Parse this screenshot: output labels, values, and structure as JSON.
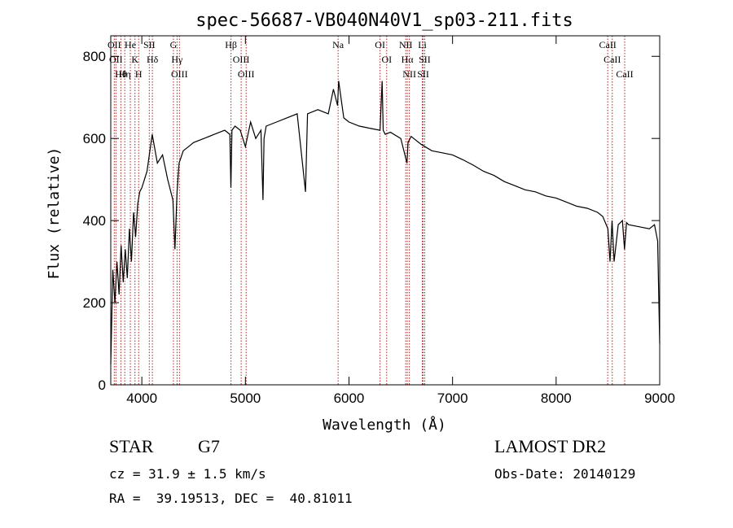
{
  "chart_data": {
    "type": "line",
    "title": "spec-56687-VB040N40V1_sp03-211.fits",
    "xlabel": "Wavelength (Å)",
    "ylabel": "Flux (relative)",
    "xlim": [
      3700,
      9000
    ],
    "ylim": [
      0,
      850
    ],
    "xticks": [
      4000,
      5000,
      6000,
      7000,
      8000,
      9000
    ],
    "yticks": [
      0,
      200,
      400,
      600,
      800
    ],
    "grid": false,
    "series": [
      {
        "name": "",
        "color": "#000000",
        "x": [
          3700,
          3720,
          3740,
          3760,
          3780,
          3800,
          3820,
          3840,
          3860,
          3880,
          3900,
          3920,
          3940,
          3960,
          3980,
          4000,
          4050,
          4100,
          4150,
          4200,
          4250,
          4300,
          4320,
          4340,
          4360,
          4400,
          4450,
          4500,
          4600,
          4700,
          4800,
          4850,
          4860,
          4870,
          4900,
          4950,
          5000,
          5050,
          5100,
          5150,
          5170,
          5180,
          5200,
          5300,
          5400,
          5500,
          5580,
          5600,
          5700,
          5800,
          5850,
          5890,
          5900,
          5950,
          6000,
          6100,
          6200,
          6300,
          6320,
          6330,
          6350,
          6400,
          6500,
          6560,
          6570,
          6600,
          6700,
          6800,
          6900,
          7000,
          7100,
          7200,
          7300,
          7400,
          7500,
          7600,
          7700,
          7800,
          7900,
          8000,
          8100,
          8200,
          8300,
          8400,
          8450,
          8500,
          8520,
          8540,
          8560,
          8600,
          8640,
          8660,
          8680,
          8700,
          8800,
          8900,
          8950,
          8980,
          9000
        ],
        "values": [
          50,
          280,
          200,
          300,
          220,
          340,
          250,
          330,
          260,
          380,
          300,
          420,
          360,
          440,
          470,
          480,
          520,
          610,
          540,
          560,
          500,
          450,
          330,
          470,
          540,
          570,
          580,
          590,
          600,
          610,
          620,
          610,
          480,
          620,
          630,
          620,
          580,
          640,
          600,
          620,
          450,
          600,
          630,
          640,
          650,
          660,
          470,
          660,
          670,
          660,
          720,
          680,
          740,
          650,
          640,
          630,
          625,
          620,
          740,
          620,
          610,
          615,
          600,
          540,
          590,
          605,
          585,
          570,
          565,
          560,
          548,
          535,
          520,
          510,
          495,
          485,
          475,
          470,
          460,
          455,
          445,
          435,
          430,
          420,
          410,
          380,
          300,
          400,
          300,
          390,
          400,
          330,
          395,
          390,
          385,
          380,
          390,
          350,
          100
        ]
      }
    ],
    "line_annotations": [
      {
        "x": 3734,
        "label": "OII"
      },
      {
        "x": 3750,
        "label": "OII"
      },
      {
        "x": 3798,
        "label": "Hθ"
      },
      {
        "x": 3835,
        "label": "Hη"
      },
      {
        "x": 3889,
        "label": "He"
      },
      {
        "x": 3934,
        "label": "K"
      },
      {
        "x": 3969,
        "label": "H"
      },
      {
        "x": 4072,
        "label": "SII"
      },
      {
        "x": 4102,
        "label": "Hδ"
      },
      {
        "x": 4305,
        "label": "G"
      },
      {
        "x": 4340,
        "label": "Hγ"
      },
      {
        "x": 4363,
        "label": "OIII"
      },
      {
        "x": 4861,
        "label": "Hβ"
      },
      {
        "x": 4959,
        "label": "OIII"
      },
      {
        "x": 5007,
        "label": "OIII"
      },
      {
        "x": 5895,
        "label": "Na"
      },
      {
        "x": 6300,
        "label": "OI"
      },
      {
        "x": 6364,
        "label": "OI"
      },
      {
        "x": 6548,
        "label": "NII"
      },
      {
        "x": 6563,
        "label": "Hα"
      },
      {
        "x": 6583,
        "label": "NII"
      },
      {
        "x": 6708,
        "label": "Li"
      },
      {
        "x": 6716,
        "label": "SII"
      },
      {
        "x": 6731,
        "label": "SII"
      },
      {
        "x": 8498,
        "label": "CaII"
      },
      {
        "x": 8542,
        "label": "CaII"
      },
      {
        "x": 8662,
        "label": "CaII"
      }
    ],
    "annotation_color": "#b22222"
  },
  "info": {
    "class": "STAR",
    "subclass": "G7",
    "cz": "cz = 31.9 ± 1.5 km/s",
    "radec": "RA =  39.19513, DEC =  40.81011",
    "survey": "LAMOST DR2",
    "obs_date": "Obs-Date: 20140129"
  }
}
